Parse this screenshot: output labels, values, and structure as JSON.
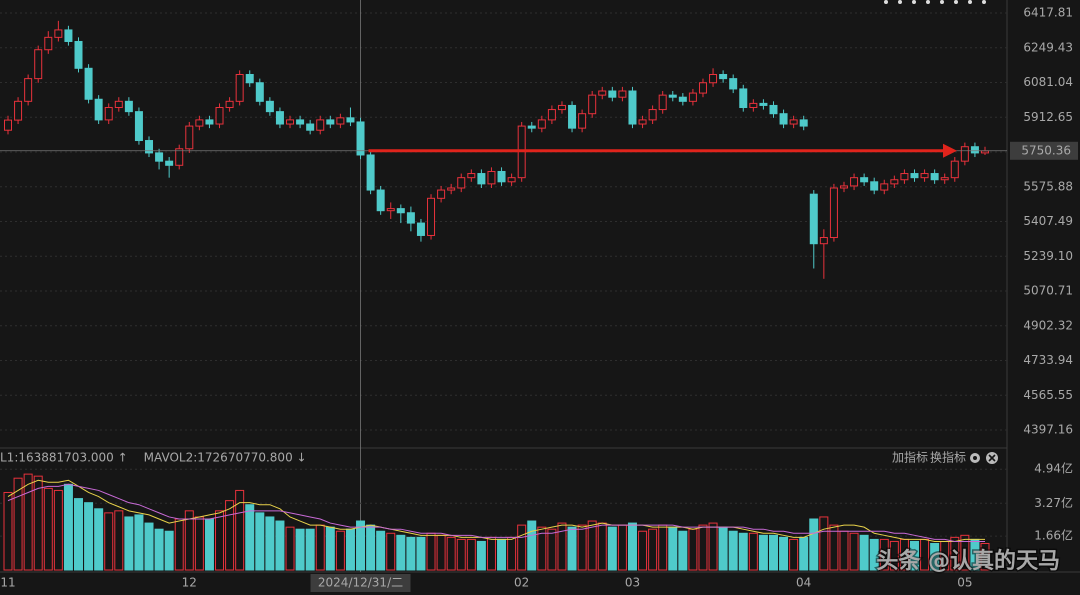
{
  "chart_data": [
    {
      "type": "candlestick",
      "categories": [
        "11",
        null,
        null,
        null,
        null,
        null,
        null,
        null,
        null,
        null,
        null,
        null,
        null,
        null,
        null,
        null,
        null,
        null,
        "12",
        null,
        null,
        null,
        null,
        null,
        null,
        null,
        null,
        null,
        null,
        null,
        null,
        null,
        null,
        null,
        null,
        "2024/12/31/二",
        null,
        null,
        null,
        null,
        null,
        null,
        null,
        null,
        null,
        null,
        null,
        null,
        null,
        null,
        null,
        "02",
        null,
        null,
        null,
        null,
        null,
        null,
        null,
        null,
        null,
        null,
        "03",
        null,
        null,
        null,
        null,
        null,
        null,
        null,
        null,
        null,
        null,
        null,
        null,
        null,
        null,
        null,
        null,
        "04",
        null,
        null,
        null,
        null,
        null,
        null,
        null,
        null,
        null,
        null,
        null,
        null,
        null,
        null,
        null,
        "05",
        null,
        null
      ],
      "open": [
        5850,
        5899,
        5990,
        6100,
        6240,
        6300,
        6336,
        6280,
        6150,
        6000,
        5900,
        5960,
        5990,
        5940,
        5800,
        5740,
        5700,
        5680,
        5760,
        5870,
        5900,
        5880,
        5960,
        5990,
        6120,
        6080,
        5990,
        5940,
        5880,
        5900,
        5880,
        5850,
        5900,
        5880,
        5910,
        5890,
        5730,
        5560,
        5460,
        5470,
        5450,
        5400,
        5340,
        5520,
        5560,
        5570,
        5620,
        5640,
        5590,
        5650,
        5600,
        5620,
        5870,
        5860,
        5900,
        5950,
        5970,
        5860,
        5930,
        6020,
        6040,
        6010,
        6040,
        5880,
        5900,
        5950,
        6020,
        6010,
        5990,
        6030,
        6080,
        6120,
        6100,
        6050,
        5960,
        5980,
        5970,
        5930,
        5880,
        5900,
        5540,
        5300,
        5330,
        5570,
        5580,
        5620,
        5600,
        5560,
        5590,
        5610,
        5640,
        5620,
        5640,
        5610,
        5620,
        5700,
        5770,
        5740
      ],
      "close": [
        5899,
        5990,
        6100,
        6240,
        6300,
        6336,
        6280,
        6150,
        6000,
        5900,
        5960,
        5990,
        5940,
        5800,
        5740,
        5700,
        5680,
        5760,
        5870,
        5900,
        5880,
        5960,
        5990,
        6120,
        6080,
        5990,
        5940,
        5880,
        5900,
        5880,
        5850,
        5900,
        5880,
        5910,
        5890,
        5730,
        5560,
        5460,
        5470,
        5450,
        5400,
        5340,
        5520,
        5560,
        5570,
        5620,
        5640,
        5590,
        5650,
        5600,
        5620,
        5870,
        5860,
        5900,
        5950,
        5970,
        5860,
        5930,
        6020,
        6040,
        6010,
        6040,
        5880,
        5900,
        5950,
        6020,
        6010,
        5990,
        6030,
        6080,
        6120,
        6100,
        6050,
        5960,
        5980,
        5970,
        5930,
        5880,
        5900,
        5870,
        5300,
        5330,
        5570,
        5580,
        5620,
        5600,
        5560,
        5590,
        5610,
        5640,
        5620,
        5640,
        5610,
        5620,
        5700,
        5770,
        5740,
        5750
      ],
      "high": [
        5920,
        6010,
        6120,
        6260,
        6330,
        6380,
        6356,
        6300,
        6170,
        6020,
        5980,
        6010,
        6010,
        5960,
        5820,
        5760,
        5720,
        5780,
        5890,
        5920,
        5920,
        5980,
        6010,
        6140,
        6140,
        6100,
        6010,
        5960,
        5920,
        5920,
        5900,
        5920,
        5920,
        5930,
        5960,
        5910,
        5750,
        5580,
        5500,
        5490,
        5480,
        5420,
        5540,
        5580,
        5590,
        5640,
        5660,
        5660,
        5670,
        5670,
        5640,
        5890,
        5890,
        5920,
        5970,
        5990,
        5990,
        5950,
        6040,
        6060,
        6060,
        6060,
        6060,
        5920,
        5970,
        6040,
        6040,
        6030,
        6050,
        6100,
        6150,
        6140,
        6120,
        6070,
        6000,
        6000,
        5990,
        5950,
        5920,
        5920,
        5560,
        5370,
        5590,
        5600,
        5640,
        5640,
        5620,
        5610,
        5630,
        5660,
        5660,
        5660,
        5660,
        5640,
        5720,
        5790,
        5790,
        5770
      ],
      "low": [
        5830,
        5880,
        5970,
        6080,
        6220,
        6280,
        6260,
        6130,
        5980,
        5880,
        5880,
        5940,
        5920,
        5780,
        5720,
        5660,
        5620,
        5660,
        5740,
        5850,
        5860,
        5860,
        5940,
        5970,
        6060,
        5970,
        5920,
        5860,
        5860,
        5860,
        5830,
        5830,
        5860,
        5860,
        5870,
        5710,
        5540,
        5440,
        5420,
        5400,
        5360,
        5310,
        5320,
        5500,
        5540,
        5550,
        5600,
        5570,
        5570,
        5580,
        5580,
        5600,
        5840,
        5840,
        5880,
        5930,
        5840,
        5840,
        5910,
        6000,
        5990,
        5990,
        5860,
        5860,
        5880,
        5930,
        5990,
        5970,
        5970,
        6010,
        6060,
        6080,
        6030,
        5940,
        5940,
        5950,
        5910,
        5860,
        5860,
        5850,
        5180,
        5130,
        5310,
        5550,
        5560,
        5580,
        5540,
        5540,
        5570,
        5590,
        5600,
        5600,
        5590,
        5590,
        5600,
        5680,
        5720,
        5730
      ],
      "up_color": "#e8323c",
      "down_color": "#4fcaca",
      "ylim": [
        4310,
        6481
      ],
      "yticks": [
        {
          "value": 4397.16,
          "label": "4397.16"
        },
        {
          "value": 4565.55,
          "label": "4565.55"
        },
        {
          "value": 4733.94,
          "label": "4733.94"
        },
        {
          "value": 4902.32,
          "label": "4902.32"
        },
        {
          "value": 5070.71,
          "label": "5070.71"
        },
        {
          "value": 5239.1,
          "label": "5239.10"
        },
        {
          "value": 5407.49,
          "label": "5407.49"
        },
        {
          "value": 5575.88,
          "label": "5575.88"
        },
        {
          "value": 5744.26,
          "label": "5744.26"
        },
        {
          "value": 5912.65,
          "label": "5912.65"
        },
        {
          "value": 6081.04,
          "label": "6081.04"
        },
        {
          "value": 6249.43,
          "label": "6249.43"
        },
        {
          "value": 6417.81,
          "label": "6417.81"
        }
      ],
      "grid": true,
      "crosshair": {
        "y": 5750.36
      },
      "arrow_color": "#e0241c"
    },
    {
      "type": "volume",
      "values": [
        3.8,
        4.5,
        4.7,
        4.6,
        4.0,
        3.9,
        4.2,
        3.5,
        3.3,
        3.0,
        2.8,
        2.9,
        2.6,
        2.7,
        2.3,
        2.0,
        1.9,
        2.5,
        2.9,
        2.6,
        2.5,
        2.9,
        3.4,
        3.9,
        3.2,
        2.8,
        2.6,
        2.4,
        2.1,
        2.0,
        2.0,
        2.2,
        2.1,
        1.9,
        2.0,
        2.4,
        2.2,
        1.9,
        1.8,
        1.7,
        1.6,
        1.6,
        1.8,
        1.7,
        1.6,
        1.5,
        1.5,
        1.4,
        1.6,
        1.5,
        1.6,
        2.2,
        2.4,
        2.1,
        2.0,
        2.3,
        2.1,
        2.2,
        2.4,
        2.3,
        2.1,
        2.2,
        2.3,
        1.9,
        2.0,
        2.2,
        2.1,
        1.9,
        2.0,
        2.2,
        2.3,
        2.1,
        1.9,
        1.8,
        1.8,
        1.7,
        1.7,
        1.6,
        1.5,
        1.6,
        2.5,
        2.6,
        2.2,
        1.9,
        1.8,
        1.7,
        1.5,
        1.5,
        1.4,
        1.5,
        1.4,
        1.5,
        1.3,
        1.4,
        1.6,
        1.7,
        1.5,
        1.3
      ],
      "series": [
        {
          "name": "L1:163881703.000 ↑",
          "color": "#e8d24a",
          "values": [
            3.6,
            3.9,
            4.2,
            4.4,
            4.3,
            4.3,
            4.4,
            4.1,
            3.8,
            3.6,
            3.3,
            3.1,
            2.9,
            2.8,
            2.7,
            2.5,
            2.3,
            2.4,
            2.5,
            2.6,
            2.7,
            2.8,
            3.0,
            3.3,
            3.3,
            3.2,
            3.2,
            3.0,
            2.6,
            2.4,
            2.2,
            2.2,
            2.1,
            2.0,
            2.0,
            2.1,
            2.2,
            2.1,
            2.0,
            1.9,
            1.8,
            1.7,
            1.7,
            1.7,
            1.7,
            1.6,
            1.6,
            1.6,
            1.5,
            1.5,
            1.5,
            1.7,
            1.9,
            2.0,
            2.1,
            2.2,
            2.2,
            2.1,
            2.2,
            2.3,
            2.2,
            2.2,
            2.2,
            2.2,
            2.1,
            2.1,
            2.1,
            2.1,
            2.0,
            2.1,
            2.1,
            2.1,
            2.1,
            2.0,
            1.9,
            1.8,
            1.8,
            1.7,
            1.6,
            1.6,
            1.8,
            2.0,
            2.1,
            2.2,
            2.2,
            2.1,
            1.8,
            1.7,
            1.6,
            1.5,
            1.5,
            1.5,
            1.4,
            1.4,
            1.4,
            1.5,
            1.5,
            1.5
          ]
        },
        {
          "name": "MAVOL2:172670770.800 ↓",
          "color": "#c86ad6",
          "values": [
            3.4,
            3.6,
            3.8,
            4.0,
            4.1,
            4.1,
            4.2,
            4.1,
            4.0,
            3.9,
            3.7,
            3.5,
            3.3,
            3.2,
            3.0,
            2.8,
            2.6,
            2.5,
            2.5,
            2.5,
            2.5,
            2.6,
            2.7,
            2.8,
            2.9,
            2.9,
            2.9,
            2.9,
            2.8,
            2.7,
            2.6,
            2.5,
            2.3,
            2.2,
            2.1,
            2.1,
            2.1,
            2.1,
            2.0,
            2.0,
            1.9,
            1.8,
            1.8,
            1.8,
            1.7,
            1.7,
            1.7,
            1.6,
            1.6,
            1.6,
            1.6,
            1.6,
            1.7,
            1.8,
            1.8,
            1.9,
            2.0,
            2.0,
            2.1,
            2.2,
            2.2,
            2.2,
            2.2,
            2.2,
            2.2,
            2.2,
            2.2,
            2.1,
            2.1,
            2.1,
            2.1,
            2.1,
            2.1,
            2.1,
            2.0,
            2.0,
            1.9,
            1.9,
            1.8,
            1.8,
            1.8,
            1.9,
            1.9,
            1.9,
            1.9,
            1.9,
            1.9,
            1.9,
            1.8,
            1.8,
            1.7,
            1.6,
            1.5,
            1.5,
            1.4,
            1.4,
            1.4,
            1.4
          ]
        }
      ],
      "ylim": [
        0,
        5.98
      ],
      "yticks": [
        {
          "value": 1.66,
          "label": "1.66亿"
        },
        {
          "value": 3.27,
          "label": "3.27亿"
        },
        {
          "value": 4.94,
          "label": "4.94亿"
        }
      ]
    }
  ],
  "toolbar": {
    "buttons": [
      "加指标",
      "换指标"
    ]
  },
  "watermark": "头条 @认真的天马"
}
